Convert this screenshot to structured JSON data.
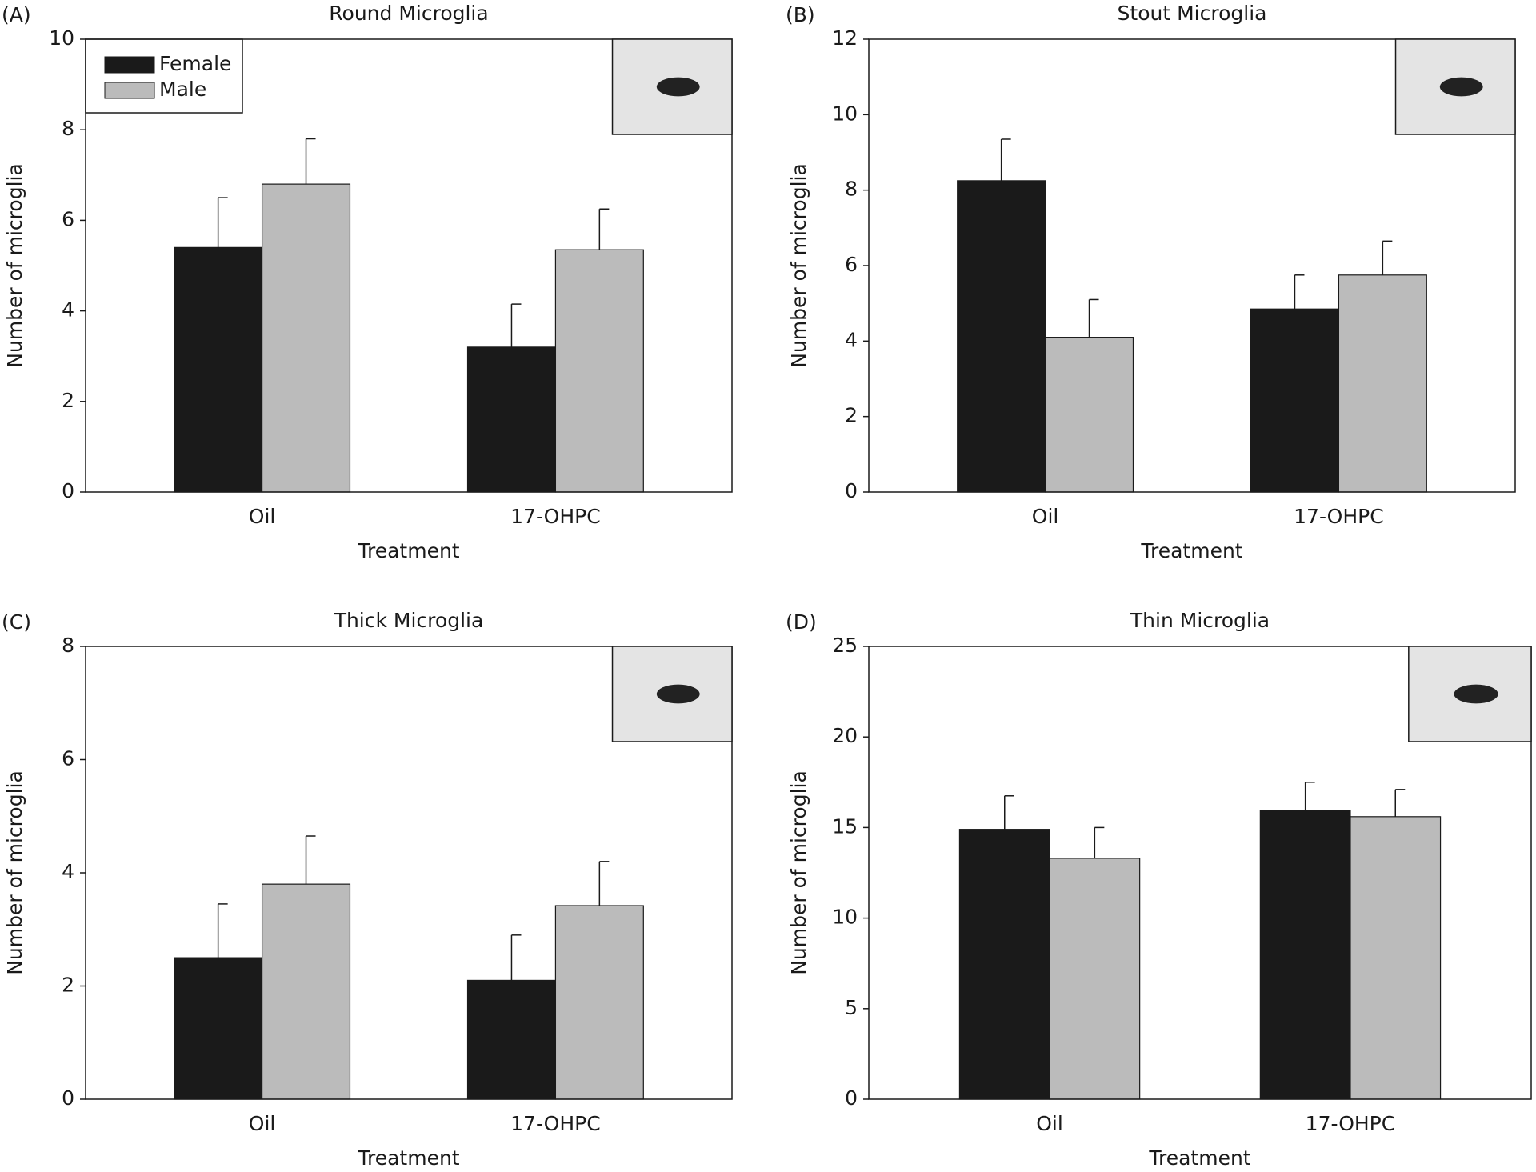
{
  "chart_data": [
    {
      "type": "bar",
      "panel_label": "(A)",
      "title": "Round Microglia",
      "xlabel": "Treatment",
      "ylabel": "Number of microglia",
      "categories": [
        "Oil",
        "17-OHPC"
      ],
      "series": [
        {
          "name": "Female",
          "color": "#1a1a1a",
          "values": [
            5.4,
            3.2
          ],
          "errors": [
            1.1,
            0.95
          ]
        },
        {
          "name": "Male",
          "color": "#bbbbbb",
          "values": [
            6.8,
            5.35
          ],
          "errors": [
            1.0,
            0.9
          ]
        }
      ],
      "ylim": [
        0,
        10
      ],
      "yticks": [
        0,
        2,
        4,
        6,
        8,
        10
      ],
      "legend": "upper left"
    },
    {
      "type": "bar",
      "panel_label": "(B)",
      "title": "Stout Microglia",
      "xlabel": "Treatment",
      "ylabel": "Number of microglia",
      "categories": [
        "Oil",
        "17-OHPC"
      ],
      "series": [
        {
          "color": "#1a1a1a",
          "values": [
            8.25,
            4.85
          ],
          "errors": [
            1.1,
            0.9
          ]
        },
        {
          "color": "#bbbbbb",
          "values": [
            4.1,
            5.75
          ],
          "errors": [
            1.0,
            0.9
          ]
        }
      ],
      "ylim": [
        0,
        12
      ],
      "yticks": [
        0,
        2,
        4,
        6,
        8,
        10,
        12
      ]
    },
    {
      "type": "bar",
      "panel_label": "(C)",
      "title": "Thick Microglia",
      "xlabel": "Treatment",
      "ylabel": "Number of microglia",
      "categories": [
        "Oil",
        "17-OHPC"
      ],
      "series": [
        {
          "color": "#1a1a1a",
          "values": [
            2.5,
            2.1
          ],
          "errors": [
            0.95,
            0.8
          ]
        },
        {
          "color": "#bbbbbb",
          "values": [
            3.8,
            3.42
          ],
          "errors": [
            0.85,
            0.78
          ]
        }
      ],
      "ylim": [
        0,
        8
      ],
      "yticks": [
        0,
        2,
        4,
        6,
        8
      ]
    },
    {
      "type": "bar",
      "panel_label": "(D)",
      "title": "Thin Microglia",
      "xlabel": "Treatment",
      "ylabel": "Number of microglia",
      "categories": [
        "Oil",
        "17-OHPC"
      ],
      "series": [
        {
          "color": "#1a1a1a",
          "values": [
            14.9,
            15.95
          ],
          "errors": [
            1.85,
            1.55
          ]
        },
        {
          "color": "#bbbbbb",
          "values": [
            13.3,
            15.6
          ],
          "errors": [
            1.7,
            1.5
          ]
        }
      ],
      "ylim": [
        0,
        25
      ],
      "yticks": [
        0,
        5,
        10,
        15,
        20,
        25
      ]
    }
  ]
}
